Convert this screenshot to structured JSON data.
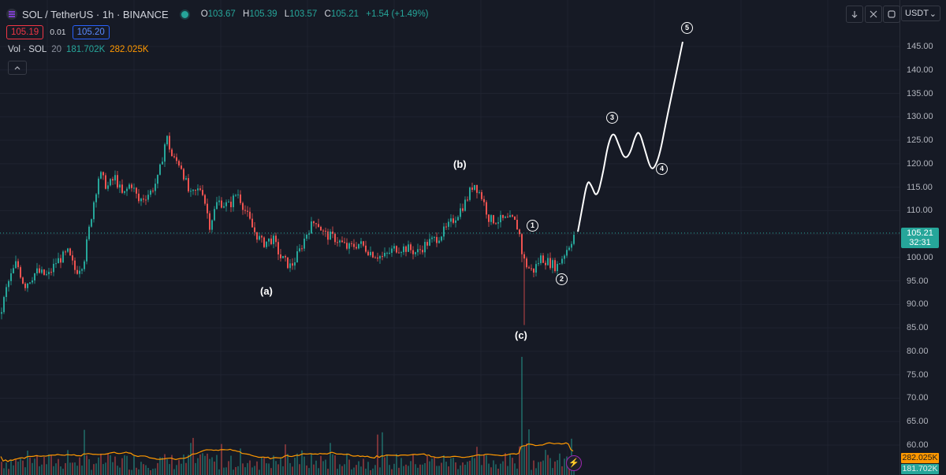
{
  "header": {
    "title": "SOL / TetherUS · 1h · BINANCE",
    "open_label": "O",
    "open": "103.67",
    "high_label": "H",
    "high": "105.39",
    "low_label": "L",
    "low": "103.57",
    "close_label": "C",
    "close": "105.21",
    "change": "+1.54 (+1.49%)"
  },
  "order": {
    "sell": "105.19",
    "spread": "0.01",
    "buy": "105.20"
  },
  "volume_legend": {
    "label": "Vol · SOL",
    "length": "20",
    "vol": "181.702K",
    "ma": "282.025K"
  },
  "toolbar": {
    "currency": "USDT",
    "chevron": "⌄"
  },
  "price_axis": [
    "60.00",
    "65.00",
    "70.00",
    "75.00",
    "80.00",
    "85.00",
    "90.00",
    "95.00",
    "100.00",
    "105.00",
    "110.00",
    "115.00",
    "120.00",
    "125.00",
    "130.00",
    "135.00",
    "140.00",
    "145.00"
  ],
  "last_price": {
    "price": "105.21",
    "countdown": "32:31"
  },
  "volume_badges": {
    "ma": "282.025K",
    "vol": "181.702K"
  },
  "wave_labels": {
    "a": "(a)",
    "b": "(b)",
    "c": "(c)",
    "w1": "1",
    "w2": "2",
    "w3": "3",
    "w4": "4",
    "w5": "5"
  },
  "colors": {
    "up": "#26a69a",
    "down": "#ef5350",
    "background": "#161a25",
    "grid": "#1f2330",
    "ma_line": "#ff9800"
  },
  "chart_data": {
    "type": "candlestick",
    "symbol": "SOL / TetherUS",
    "interval": "1h",
    "ylim": [
      57.5,
      148.5
    ],
    "anchors": [
      [
        0,
        88
      ],
      [
        8,
        94
      ],
      [
        20,
        99
      ],
      [
        30,
        94
      ],
      [
        45,
        97
      ],
      [
        60,
        96
      ],
      [
        70,
        99
      ],
      [
        85,
        101
      ],
      [
        95,
        97
      ],
      [
        105,
        99
      ],
      [
        118,
        112
      ],
      [
        125,
        118
      ],
      [
        135,
        115
      ],
      [
        145,
        117
      ],
      [
        155,
        113
      ],
      [
        165,
        116
      ],
      [
        175,
        112
      ],
      [
        190,
        114
      ],
      [
        200,
        117
      ],
      [
        210,
        126
      ],
      [
        218,
        121
      ],
      [
        228,
        120
      ],
      [
        240,
        113
      ],
      [
        255,
        115
      ],
      [
        265,
        107
      ],
      [
        275,
        112
      ],
      [
        290,
        111
      ],
      [
        300,
        114
      ],
      [
        310,
        110
      ],
      [
        320,
        106
      ],
      [
        332,
        103
      ],
      [
        345,
        104
      ],
      [
        355,
        100
      ],
      [
        368,
        98
      ],
      [
        378,
        101
      ],
      [
        390,
        106
      ],
      [
        400,
        108
      ],
      [
        410,
        105
      ],
      [
        425,
        104
      ],
      [
        440,
        102
      ],
      [
        455,
        103
      ],
      [
        470,
        101
      ],
      [
        485,
        100
      ],
      [
        500,
        102
      ],
      [
        515,
        102
      ],
      [
        528,
        101
      ],
      [
        540,
        103
      ],
      [
        552,
        104
      ],
      [
        565,
        106
      ],
      [
        578,
        109
      ],
      [
        590,
        112
      ],
      [
        600,
        116
      ],
      [
        610,
        113
      ],
      [
        620,
        108
      ],
      [
        635,
        108
      ],
      [
        650,
        108
      ],
      [
        657,
        106
      ],
      [
        662,
        100
      ],
      [
        668,
        98
      ],
      [
        675,
        97
      ],
      [
        685,
        100
      ],
      [
        695,
        99
      ],
      [
        705,
        98
      ],
      [
        712,
        100
      ],
      [
        722,
        103
      ],
      [
        728,
        105.2
      ]
    ],
    "spikes": [
      [
        663,
        85.6
      ],
      [
        660,
        99
      ]
    ],
    "projection": [
      [
        733,
        105.5
      ],
      [
        738,
        110
      ],
      [
        745,
        116.5
      ],
      [
        750,
        115.5
      ],
      [
        757,
        112.5
      ],
      [
        765,
        118
      ],
      [
        771,
        124
      ],
      [
        778,
        127
      ],
      [
        785,
        124
      ],
      [
        792,
        121
      ],
      [
        799,
        122
      ],
      [
        806,
        126
      ],
      [
        811,
        127
      ],
      [
        818,
        123
      ],
      [
        825,
        119
      ],
      [
        830,
        119
      ],
      [
        837,
        122
      ],
      [
        845,
        129
      ],
      [
        855,
        137
      ],
      [
        866,
        146
      ]
    ],
    "volume": {
      "base_level": 10000,
      "ma_value": "282.025K",
      "last_vol": "181.702K",
      "spike_x": 661
    },
    "x_range": [
      0,
      729
    ]
  }
}
